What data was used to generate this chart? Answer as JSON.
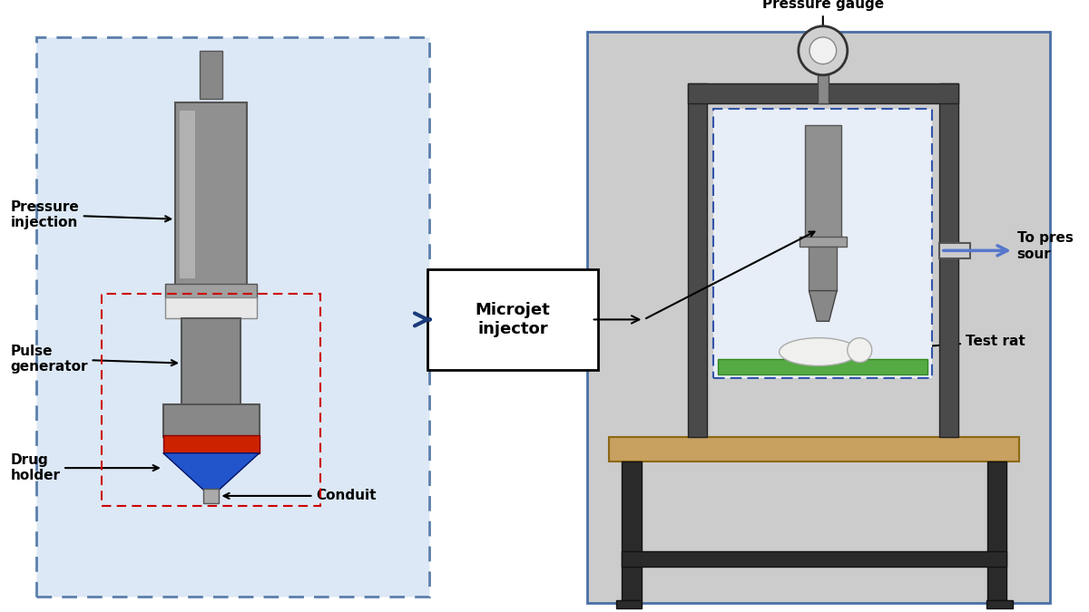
{
  "bg_color": "#ffffff",
  "left_panel_bg": "#dce8f5",
  "left_panel_border_color": "#5b7faa",
  "right_panel_bg": "#cccccc",
  "right_panel_border_color": "#4a6fa5",
  "syringe_body_color": "#909090",
  "syringe_highlight": "#c8c8c8",
  "red_color": "#cc2200",
  "blue_color": "#2255cc",
  "arrow_color": "#1a3a7a",
  "label_fontsize": 11,
  "bold_fontsize": 13,
  "conduit_label": "Conduit",
  "pressure_label": "Pressure\ninjection",
  "pulse_label": "Pulse\ngenerator",
  "drug_label": "Drug\nholder",
  "microjet_label": "Microjet\ninjector",
  "pressure_gauge_label": "Pressure gauge",
  "test_rat_label": "Test rat",
  "to_pressure_label": "To pres\nsour"
}
